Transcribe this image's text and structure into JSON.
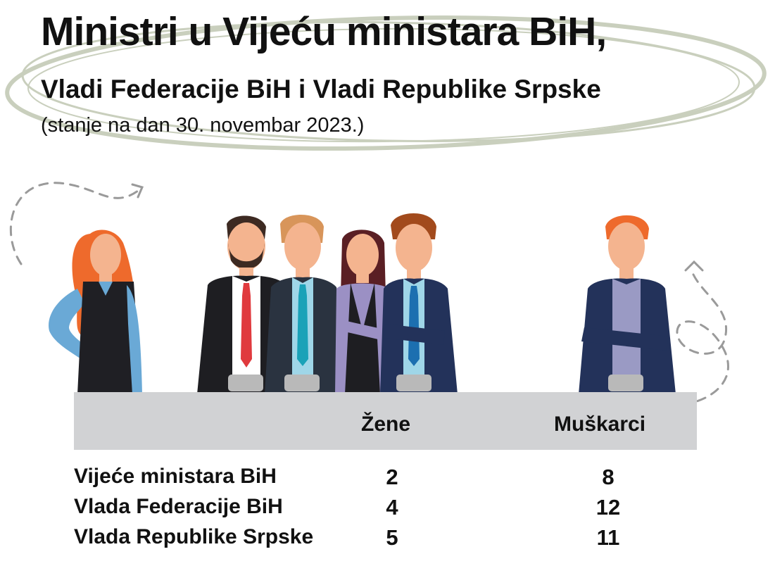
{
  "header": {
    "title": "Ministri u Vijeću ministara BiH,",
    "subtitle": "Vladi Federacije BiH i Vladi Republike Srpske",
    "note": "(stanje na dan 30. novembar 2023.)"
  },
  "colors": {
    "ellipse": "#c9cfbd",
    "table_header_bg": "#d1d2d4",
    "hair_orange": "#ee6a2c",
    "skin": "#f4b48f"
  },
  "chart_data": {
    "type": "table",
    "columns": [
      "Žene",
      "Muškarci"
    ],
    "rows": [
      {
        "label": "Vijeće ministara BiH",
        "zene": "2",
        "muskarci": "8"
      },
      {
        "label": "Vlada Federacije BiH",
        "zene": "4",
        "muskarci": "12"
      },
      {
        "label": "Vlada Republike Srpske",
        "zene": "5",
        "muskarci": "11"
      }
    ]
  }
}
